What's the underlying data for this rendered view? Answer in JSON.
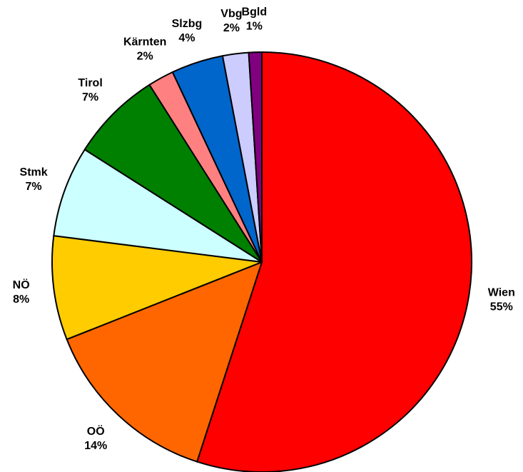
{
  "chart_data": {
    "type": "pie",
    "categories": [
      "Wien",
      "OÖ",
      "NÖ",
      "Stmk",
      "Tirol",
      "Kärnten",
      "Slzbg",
      "Vbg",
      "Bgld"
    ],
    "values": [
      55,
      14,
      8,
      7,
      7,
      2,
      4,
      2,
      1
    ],
    "value_labels": [
      "55%",
      "14%",
      "8%",
      "7%",
      "7%",
      "2%",
      "4%",
      "2%",
      "1%"
    ],
    "colors": [
      "#ff0000",
      "#ff6600",
      "#ffcc00",
      "#ccffff",
      "#008000",
      "#ff8080",
      "#0066cc",
      "#ccccff",
      "#800080"
    ]
  }
}
